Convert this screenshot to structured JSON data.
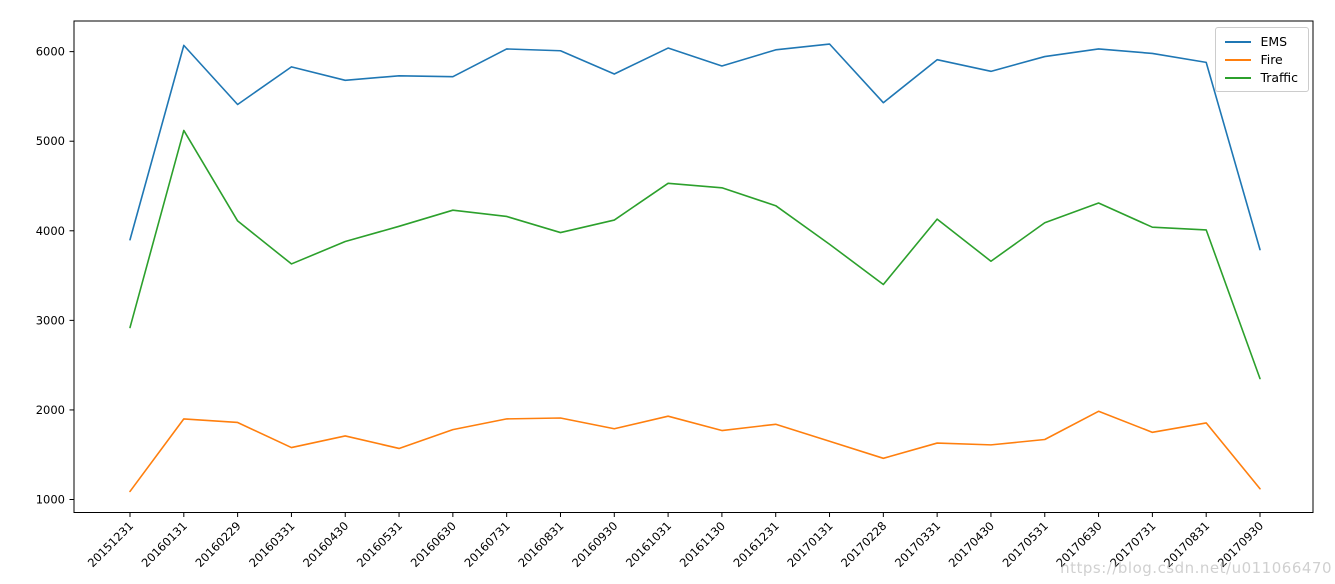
{
  "watermark": {
    "text": "https://blog.csdn.net/u011066470"
  },
  "chart_data": {
    "type": "line",
    "title": "",
    "xlabel": "",
    "ylabel": "",
    "grid": false,
    "legend_position": "upper right",
    "x_tick_rotation": 45,
    "categories": [
      "20151231",
      "20160131",
      "20160229",
      "20160331",
      "20160430",
      "20160531",
      "20160630",
      "20160731",
      "20160831",
      "20160930",
      "20161031",
      "20161130",
      "20161231",
      "20170131",
      "20170228",
      "20170331",
      "20170430",
      "20170531",
      "20170630",
      "20170731",
      "20170831",
      "20170930"
    ],
    "series": [
      {
        "name": "EMS",
        "color": "#1f77b4",
        "values": [
          3900,
          6070,
          5410,
          5830,
          5680,
          5730,
          5720,
          6030,
          6010,
          5750,
          6040,
          5840,
          6020,
          6085,
          5430,
          5910,
          5780,
          5945,
          6030,
          5980,
          5880,
          3790
        ]
      },
      {
        "name": "Fire",
        "color": "#ff7f0e",
        "values": [
          1090,
          1900,
          1860,
          1580,
          1710,
          1570,
          1780,
          1900,
          1910,
          1790,
          1930,
          1770,
          1840,
          1650,
          1460,
          1630,
          1610,
          1670,
          1985,
          1750,
          1855,
          1120
        ]
      },
      {
        "name": "Traffic",
        "color": "#2ca02c",
        "values": [
          2920,
          5120,
          4110,
          3630,
          3880,
          4050,
          4230,
          4160,
          3980,
          4120,
          4530,
          4480,
          4280,
          3850,
          3400,
          4130,
          3660,
          4090,
          4310,
          4040,
          4010,
          2350
        ]
      }
    ],
    "ylim": [
      855,
      6342
    ],
    "yticks": [
      1000,
      2000,
      3000,
      4000,
      5000,
      6000
    ]
  }
}
